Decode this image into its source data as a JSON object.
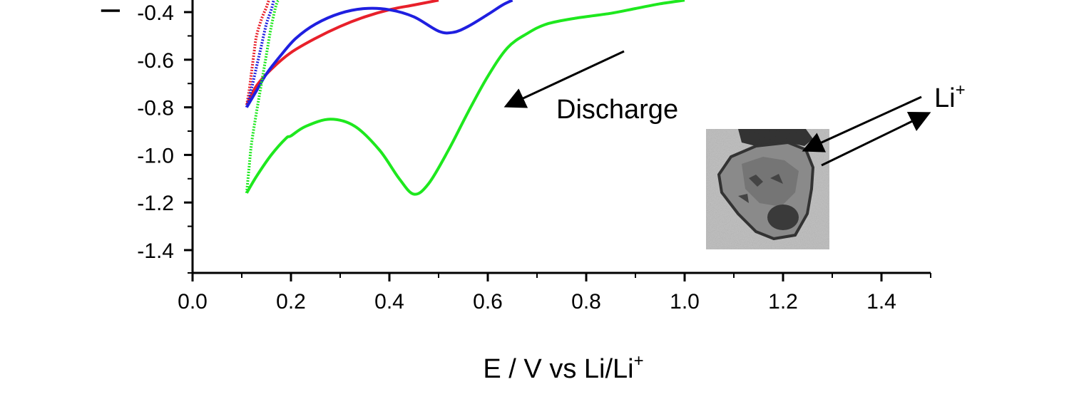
{
  "chart_data": {
    "type": "line",
    "xlabel_main": "E / V vs Li/Li",
    "xlabel_sup": "+",
    "ylabel_visible": "I",
    "xlim": [
      0.0,
      1.5
    ],
    "ylim": [
      -1.5,
      -0.35
    ],
    "x_ticks": [
      0.0,
      0.2,
      0.4,
      0.6,
      0.8,
      1.0,
      1.2,
      1.4
    ],
    "x_tick_labels": [
      "0.0",
      "0.2",
      "0.4",
      "0.6",
      "0.8",
      "1.0",
      "1.2",
      "1.4"
    ],
    "y_ticks": [
      -0.4,
      -0.6,
      -0.8,
      -1.0,
      -1.2,
      -1.4
    ],
    "y_tick_labels": [
      "-0.4",
      "-0.6",
      "-0.8",
      "-1.0",
      "-1.2",
      "-1.4"
    ],
    "series": [
      {
        "color": "#e8202a",
        "points": [
          [
            0.11,
            -0.79
          ],
          [
            0.115,
            -0.73
          ],
          [
            0.12,
            -0.65
          ],
          [
            0.125,
            -0.57
          ],
          [
            0.13,
            -0.5
          ],
          [
            0.14,
            -0.43
          ],
          [
            0.15,
            -0.38
          ],
          [
            0.155,
            -0.35
          ]
        ],
        "return_points": [
          [
            0.11,
            -0.79
          ],
          [
            0.13,
            -0.71
          ],
          [
            0.16,
            -0.64
          ],
          [
            0.2,
            -0.57
          ],
          [
            0.25,
            -0.51
          ],
          [
            0.3,
            -0.46
          ],
          [
            0.35,
            -0.42
          ],
          [
            0.4,
            -0.39
          ],
          [
            0.45,
            -0.37
          ],
          [
            0.5,
            -0.35
          ]
        ]
      },
      {
        "color": "#1f1fe0",
        "points": [
          [
            0.11,
            -0.8
          ],
          [
            0.12,
            -0.72
          ],
          [
            0.13,
            -0.63
          ],
          [
            0.14,
            -0.54
          ],
          [
            0.15,
            -0.45
          ],
          [
            0.16,
            -0.39
          ],
          [
            0.165,
            -0.35
          ]
        ],
        "return_points": [
          [
            0.11,
            -0.8
          ],
          [
            0.13,
            -0.73
          ],
          [
            0.15,
            -0.66
          ],
          [
            0.18,
            -0.58
          ],
          [
            0.21,
            -0.51
          ],
          [
            0.25,
            -0.45
          ],
          [
            0.3,
            -0.405
          ],
          [
            0.35,
            -0.385
          ],
          [
            0.4,
            -0.39
          ],
          [
            0.45,
            -0.42
          ],
          [
            0.5,
            -0.48
          ],
          [
            0.53,
            -0.485
          ],
          [
            0.56,
            -0.46
          ],
          [
            0.6,
            -0.41
          ],
          [
            0.63,
            -0.37
          ],
          [
            0.65,
            -0.35
          ]
        ]
      },
      {
        "color": "#1ee81e",
        "points": [
          [
            0.11,
            -1.16
          ],
          [
            0.115,
            -1.05
          ],
          [
            0.12,
            -0.95
          ],
          [
            0.13,
            -0.82
          ],
          [
            0.14,
            -0.7
          ],
          [
            0.15,
            -0.58
          ],
          [
            0.16,
            -0.46
          ],
          [
            0.17,
            -0.37
          ],
          [
            0.175,
            -0.35
          ]
        ],
        "return_points": [
          [
            0.11,
            -1.16
          ],
          [
            0.13,
            -1.09
          ],
          [
            0.16,
            -1.0
          ],
          [
            0.19,
            -0.93
          ],
          [
            0.2,
            -0.92
          ],
          [
            0.23,
            -0.88
          ],
          [
            0.28,
            -0.85
          ],
          [
            0.33,
            -0.88
          ],
          [
            0.38,
            -0.98
          ],
          [
            0.42,
            -1.1
          ],
          [
            0.45,
            -1.165
          ],
          [
            0.48,
            -1.12
          ],
          [
            0.52,
            -0.98
          ],
          [
            0.56,
            -0.82
          ],
          [
            0.6,
            -0.67
          ],
          [
            0.64,
            -0.55
          ],
          [
            0.68,
            -0.49
          ],
          [
            0.72,
            -0.45
          ],
          [
            0.78,
            -0.425
          ],
          [
            0.85,
            -0.405
          ],
          [
            0.9,
            -0.385
          ],
          [
            0.95,
            -0.365
          ],
          [
            1.0,
            -0.35
          ]
        ]
      }
    ],
    "annotations": {
      "discharge_label": "Discharge",
      "li_label_main": "Li",
      "li_label_sup": "+"
    }
  }
}
